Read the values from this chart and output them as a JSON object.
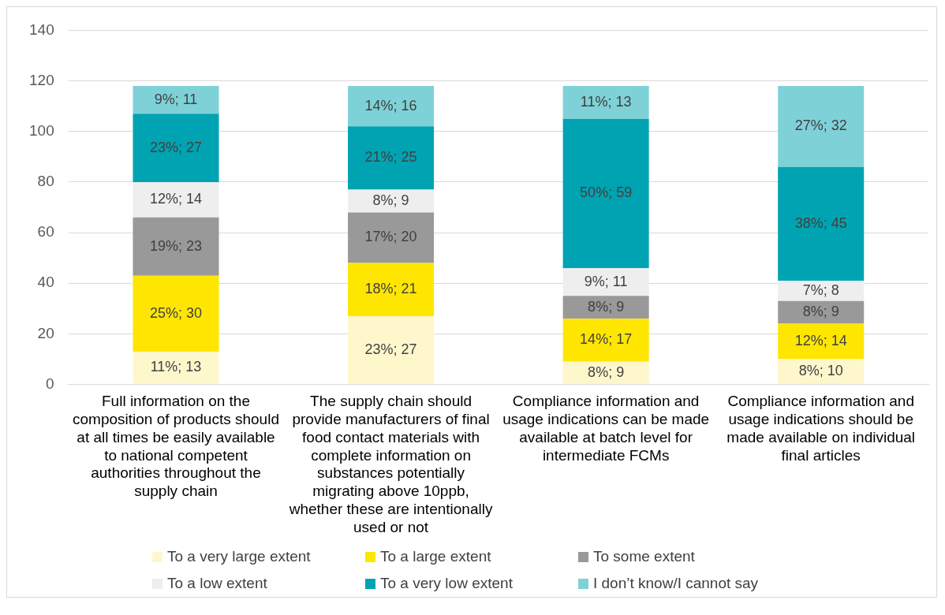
{
  "chart_data": {
    "type": "bar",
    "stacked": true,
    "categories": [
      "Full information on the composition of products should at all times be easily available to national competent authorities throughout the supply chain",
      "The supply chain should provide manufacturers of final food contact materials with complete information on substances potentially migrating above 10ppb, whether these are intentionally used or not",
      "Compliance information and usage indications can be made available at batch level for intermediate FCMs",
      "Compliance information and usage indications should be made available on individual final articles"
    ],
    "series": [
      {
        "name": "To a very large extent",
        "color": "#fff7cc",
        "values": [
          13,
          27,
          9,
          10
        ],
        "value_labels": [
          "11%; 13",
          "23%; 27",
          "8%; 9",
          "8%; 10"
        ]
      },
      {
        "name": "To a large extent",
        "color": "#ffe600",
        "values": [
          30,
          21,
          17,
          14
        ],
        "value_labels": [
          "25%; 30",
          "18%; 21",
          "14%; 17",
          "12%; 14"
        ]
      },
      {
        "name": "To some extent",
        "color": "#999999",
        "values": [
          23,
          20,
          9,
          9
        ],
        "value_labels": [
          "19%; 23",
          "17%; 20",
          "8%; 9",
          "8%; 9"
        ]
      },
      {
        "name": "To a low extent",
        "color": "#eeeeee",
        "values": [
          14,
          9,
          11,
          8
        ],
        "value_labels": [
          "12%; 14",
          "8%; 9",
          "9%; 11",
          "7%; 8"
        ]
      },
      {
        "name": "To a very low extent",
        "color": "#00a3b1",
        "values": [
          27,
          25,
          59,
          45
        ],
        "value_labels": [
          "23%; 27",
          "21%; 25",
          "50%; 59",
          "38%; 45"
        ]
      },
      {
        "name": "I don’t know/I cannot say",
        "color": "#7fd1d8",
        "values": [
          11,
          16,
          13,
          32
        ],
        "value_labels": [
          "9%; 11",
          "14%; 16",
          "11%; 13",
          "27%; 32"
        ]
      }
    ],
    "ylim": [
      0,
      140
    ],
    "yticks": [
      0,
      20,
      40,
      60,
      80,
      100,
      120,
      140
    ],
    "grid": "y",
    "legend": "bottom"
  }
}
